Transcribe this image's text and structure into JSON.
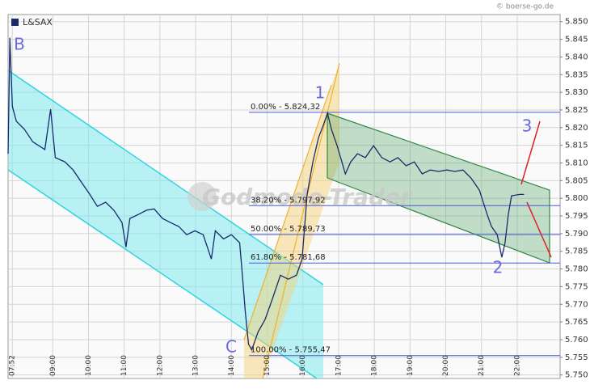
{
  "chart_data": {
    "type": "line",
    "source": "© boerse-go.de",
    "watermark": "Godmode-Trader",
    "xlim": [
      7.75,
      23.2
    ],
    "xticks": [
      {
        "value": 7.867,
        "label": "07:52"
      },
      {
        "value": 9,
        "label": "09:00"
      },
      {
        "value": 10,
        "label": "10:00"
      },
      {
        "value": 11,
        "label": "11:00"
      },
      {
        "value": 12,
        "label": "12:00"
      },
      {
        "value": 13,
        "label": "13:00"
      },
      {
        "value": 14,
        "label": "14:00"
      },
      {
        "value": 15,
        "label": "15:00"
      },
      {
        "value": 16,
        "label": "16:00"
      },
      {
        "value": 17,
        "label": "17:00"
      },
      {
        "value": 18,
        "label": "18:00"
      },
      {
        "value": 19,
        "label": "19:00"
      },
      {
        "value": 20,
        "label": "20:00"
      },
      {
        "value": 21,
        "label": "21:00"
      },
      {
        "value": 22,
        "label": "22:00"
      }
    ],
    "ylim": [
      5.749,
      5.852
    ],
    "yticks": [
      {
        "value": 5.75,
        "label": "5.750"
      },
      {
        "value": 5.755,
        "label": "5.755"
      },
      {
        "value": 5.76,
        "label": "5.760"
      },
      {
        "value": 5.765,
        "label": "5.765"
      },
      {
        "value": 5.77,
        "label": "5.770"
      },
      {
        "value": 5.775,
        "label": "5.775"
      },
      {
        "value": 5.78,
        "label": "5.780"
      },
      {
        "value": 5.785,
        "label": "5.785"
      },
      {
        "value": 5.79,
        "label": "5.790"
      },
      {
        "value": 5.795,
        "label": "5.795"
      },
      {
        "value": 5.8,
        "label": "5.800"
      },
      {
        "value": 5.805,
        "label": "5.805"
      },
      {
        "value": 5.81,
        "label": "5.810"
      },
      {
        "value": 5.815,
        "label": "5.815"
      },
      {
        "value": 5.82,
        "label": "5.820"
      },
      {
        "value": 5.825,
        "label": "5.825"
      },
      {
        "value": 5.83,
        "label": "5.830"
      },
      {
        "value": 5.835,
        "label": "5.835"
      },
      {
        "value": 5.84,
        "label": "5.840"
      },
      {
        "value": 5.845,
        "label": "5.845"
      },
      {
        "value": 5.85,
        "label": "5.850"
      }
    ],
    "grid": true,
    "x": [
      7.75,
      7.8,
      7.87,
      7.98,
      8.21,
      8.44,
      8.78,
      8.94,
      9.07,
      9.34,
      9.57,
      9.8,
      10.03,
      10.25,
      10.48,
      10.71,
      10.94,
      11.05,
      11.16,
      11.39,
      11.62,
      11.84,
      12.07,
      12.3,
      12.53,
      12.75,
      12.98,
      13.21,
      13.44,
      13.55,
      13.78,
      14.0,
      14.23,
      14.29,
      14.39,
      14.48,
      14.57,
      14.75,
      14.94,
      15.14,
      15.37,
      15.59,
      15.82,
      15.98,
      16.12,
      16.28,
      16.44,
      16.57,
      16.69,
      16.8,
      16.96,
      17.19,
      17.34,
      17.53,
      17.75,
      17.98,
      18.21,
      18.44,
      18.66,
      18.89,
      19.12,
      19.34,
      19.57,
      19.8,
      20.03,
      20.25,
      20.48,
      20.71,
      20.94,
      21.16,
      21.28,
      21.44,
      21.57,
      21.66,
      21.75,
      21.84,
      22.07,
      22.19
    ],
    "series": [
      {
        "name": "L&SAX",
        "color": "#1a2a6c",
        "values": [
          5.8126,
          5.8454,
          5.826,
          5.8218,
          5.8195,
          5.816,
          5.8138,
          5.8252,
          5.8115,
          5.8103,
          5.808,
          5.8046,
          5.8012,
          5.7977,
          5.7989,
          5.7966,
          5.7931,
          5.7862,
          5.7943,
          5.7954,
          5.7966,
          5.797,
          5.7943,
          5.7931,
          5.792,
          5.7897,
          5.7908,
          5.7897,
          5.7828,
          5.7908,
          5.7885,
          5.7897,
          5.7874,
          5.7805,
          5.7679,
          5.7587,
          5.7571,
          5.7622,
          5.7656,
          5.7713,
          5.7782,
          5.7771,
          5.7782,
          5.7828,
          5.8011,
          5.8103,
          5.8172,
          5.8206,
          5.8241,
          5.8195,
          5.8149,
          5.8069,
          5.8103,
          5.8126,
          5.8115,
          5.8149,
          5.8115,
          5.8103,
          5.8115,
          5.8092,
          5.8103,
          5.8069,
          5.808,
          5.8076,
          5.808,
          5.8076,
          5.808,
          5.8057,
          5.8023,
          5.7954,
          5.792,
          5.7897,
          5.7833,
          5.7874,
          5.7954,
          5.8007,
          5.8011,
          5.8011
        ]
      }
    ],
    "fib_levels": [
      {
        "label": "0.00% - 5.824,32",
        "value": 5.82432
      },
      {
        "label": "38.20% - 5.797,92",
        "value": 5.79792
      },
      {
        "label": "50.00% - 5.789,73",
        "value": 5.78973
      },
      {
        "label": "61.80% - 5.781,68",
        "value": 5.78168
      },
      {
        "label": "100.00% - 5.755,47",
        "value": 5.75547
      }
    ],
    "annotations": [
      "B",
      "C",
      "1",
      "2",
      "3"
    ]
  }
}
